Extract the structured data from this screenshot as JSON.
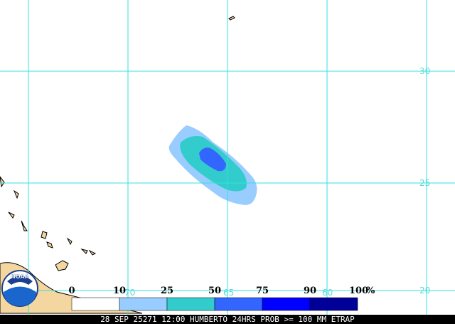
{
  "map": {
    "latitude_labels": [
      "30",
      "25",
      "20"
    ],
    "longitude_labels": [
      "70",
      "65",
      "60"
    ],
    "legend": {
      "labels": [
        "0",
        "10",
        "25",
        "50",
        "75",
        "90",
        "100"
      ],
      "unit": "%",
      "colors": [
        "#ffffff",
        "#99ccff",
        "#33cccc",
        "#3366ff",
        "#0000ff",
        "#000099"
      ]
    },
    "caption": "28 SEP 25271 12:00 HUMBERTO 24HRS PROB >= 100 MM ETRAP",
    "logo": "NOAA"
  }
}
